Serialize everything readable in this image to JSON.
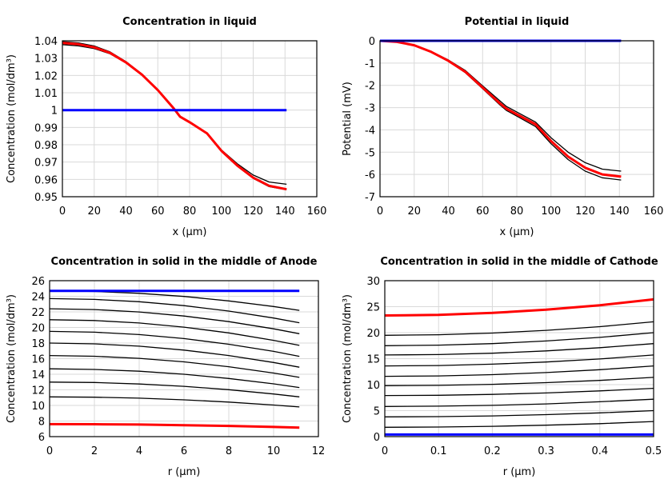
{
  "chart_data": [
    {
      "type": "line",
      "title": "Concentration in liquid",
      "xlabel": "x (µm)",
      "ylabel": "Concentration (mol/dm³)",
      "xlim": [
        0,
        160
      ],
      "ylim": [
        0.95,
        1.04
      ],
      "xticks": [
        "0",
        "20",
        "40",
        "60",
        "80",
        "100",
        "120",
        "140",
        "160"
      ],
      "yticks": [
        "0.95",
        "0.96",
        "0.97",
        "0.98",
        "0.99",
        "1",
        "1.01",
        "1.02",
        "1.03",
        "1.04"
      ],
      "grid": true,
      "x": [
        0,
        10,
        20,
        30,
        40,
        50,
        60,
        70,
        74,
        80,
        91,
        100,
        110,
        120,
        130,
        141
      ],
      "series": [
        {
          "color": "#000000",
          "values": [
            1.0395,
            1.0388,
            1.037,
            1.0336,
            1.028,
            1.0208,
            1.0117,
            1.0012,
            0.9964,
            0.9932,
            0.9867,
            0.977,
            0.969,
            0.9625,
            0.9585,
            0.9572
          ]
        },
        {
          "color": "#000000",
          "values": [
            1.0378,
            1.0371,
            1.0355,
            1.0325,
            1.0272,
            1.0202,
            1.0113,
            1.0008,
            0.996,
            0.9928,
            0.9863,
            0.9762,
            0.9677,
            0.9606,
            0.9558,
            0.954
          ]
        },
        {
          "color": "#ff0000",
          "values": [
            1.0388,
            1.038,
            1.0362,
            1.033,
            1.0275,
            1.0205,
            1.0115,
            1.001,
            0.9962,
            0.993,
            0.9865,
            0.9765,
            0.968,
            0.961,
            0.9563,
            0.9543
          ]
        },
        {
          "color": "#0000ff",
          "values": [
            1,
            1,
            1,
            1,
            1,
            1,
            1,
            1,
            1,
            1,
            1,
            1,
            1,
            1,
            1,
            1
          ]
        }
      ]
    },
    {
      "type": "line",
      "title": "Potential in liquid",
      "xlabel": "x (µm)",
      "ylabel": "Potential (mV)",
      "xlim": [
        0,
        160
      ],
      "ylim": [
        -7,
        0
      ],
      "xticks": [
        "0",
        "20",
        "40",
        "60",
        "80",
        "100",
        "120",
        "140",
        "160"
      ],
      "yticks": [
        "-7",
        "-6",
        "-5",
        "-4",
        "-3",
        "-2",
        "-1",
        "0"
      ],
      "grid": true,
      "x": [
        0,
        10,
        20,
        30,
        40,
        50,
        60,
        70,
        74,
        80,
        91,
        100,
        110,
        120,
        130,
        141
      ],
      "series": [
        {
          "color": "#000000",
          "values": [
            0,
            -0.05,
            -0.19,
            -0.48,
            -0.86,
            -1.34,
            -2.02,
            -2.69,
            -2.95,
            -3.2,
            -3.65,
            -4.35,
            -5.0,
            -5.47,
            -5.76,
            -5.85
          ]
        },
        {
          "color": "#000000",
          "values": [
            0,
            -0.05,
            -0.2,
            -0.51,
            -0.92,
            -1.44,
            -2.15,
            -2.87,
            -3.13,
            -3.38,
            -3.85,
            -4.62,
            -5.33,
            -5.85,
            -6.15,
            -6.25
          ]
        },
        {
          "color": "#ff0000",
          "values": [
            0,
            -0.05,
            -0.2,
            -0.5,
            -0.9,
            -1.4,
            -2.1,
            -2.8,
            -3.05,
            -3.3,
            -3.75,
            -4.5,
            -5.2,
            -5.7,
            -6.0,
            -6.1
          ]
        },
        {
          "color": "#0000ff",
          "values": [
            0,
            0,
            0,
            0,
            0,
            0,
            0,
            0,
            0,
            0,
            0,
            0,
            0,
            0,
            0,
            0
          ]
        }
      ]
    },
    {
      "type": "line",
      "title": "Concentration in solid in the middle of Anode",
      "xlabel": "r (µm)",
      "ylabel": "Concentration (mol/dm³)",
      "xlim": [
        0,
        12
      ],
      "ylim": [
        6,
        26
      ],
      "xticks": [
        "0",
        "2",
        "4",
        "6",
        "8",
        "10",
        "12"
      ],
      "yticks": [
        "6",
        "8",
        "10",
        "12",
        "14",
        "16",
        "18",
        "20",
        "22",
        "24",
        "26"
      ],
      "grid": true,
      "x": [
        0,
        2,
        4,
        6,
        8,
        10,
        11.15
      ],
      "series": [
        {
          "color": "#000000",
          "values": [
            24.7,
            24.62,
            24.38,
            23.98,
            23.41,
            22.69,
            22.2
          ]
        },
        {
          "color": "#000000",
          "values": [
            23.7,
            23.6,
            23.3,
            22.8,
            22.1,
            21.21,
            20.6
          ]
        },
        {
          "color": "#000000",
          "values": [
            22.4,
            22.3,
            21.99,
            21.47,
            20.75,
            19.83,
            19.2
          ]
        },
        {
          "color": "#000000",
          "values": [
            21.0,
            20.89,
            20.57,
            20.04,
            19.3,
            18.35,
            17.7
          ]
        },
        {
          "color": "#000000",
          "values": [
            19.5,
            19.4,
            19.09,
            18.57,
            17.85,
            16.93,
            16.3
          ]
        },
        {
          "color": "#000000",
          "values": [
            18.0,
            17.9,
            17.6,
            17.1,
            16.4,
            15.51,
            14.9
          ]
        },
        {
          "color": "#000000",
          "values": [
            16.4,
            16.31,
            16.04,
            15.59,
            14.96,
            14.15,
            13.6
          ]
        },
        {
          "color": "#000000",
          "values": [
            14.7,
            14.62,
            14.39,
            14.0,
            13.46,
            12.77,
            12.3
          ]
        },
        {
          "color": "#000000",
          "values": [
            13.0,
            12.94,
            12.75,
            12.45,
            12.02,
            11.47,
            11.1
          ]
        },
        {
          "color": "#000000",
          "values": [
            11.1,
            11.06,
            10.93,
            10.72,
            10.43,
            10.05,
            9.8
          ]
        },
        {
          "color": "#ff0000",
          "values": [
            7.6,
            7.59,
            7.55,
            7.47,
            7.37,
            7.24,
            7.15
          ]
        },
        {
          "color": "#0000ff",
          "values": [
            24.7,
            24.7,
            24.7,
            24.7,
            24.7,
            24.7,
            24.7
          ]
        }
      ]
    },
    {
      "type": "line",
      "title": "Concentration in solid in the middle of Cathode",
      "xlabel": "r (µm)",
      "ylabel": "Concentration (mol/dm³)",
      "xlim": [
        0,
        0.5
      ],
      "ylim": [
        0,
        30
      ],
      "xticks": [
        "0",
        "0.1",
        "0.2",
        "0.3",
        "0.4",
        "0.5"
      ],
      "yticks": [
        "0",
        "5",
        "10",
        "15",
        "20",
        "25",
        "30"
      ],
      "grid": true,
      "x": [
        0,
        0.1,
        0.2,
        0.3,
        0.4,
        0.5
      ],
      "series": [
        {
          "color": "#000000",
          "values": [
            19.5,
            19.6,
            19.92,
            20.44,
            21.16,
            22.1
          ]
        },
        {
          "color": "#000000",
          "values": [
            17.5,
            17.6,
            17.9,
            18.4,
            19.1,
            20.0
          ]
        },
        {
          "color": "#000000",
          "values": [
            15.7,
            15.79,
            16.05,
            16.49,
            17.11,
            17.9
          ]
        },
        {
          "color": "#000000",
          "values": [
            13.6,
            13.68,
            13.94,
            14.36,
            14.94,
            15.7
          ]
        },
        {
          "color": "#000000",
          "values": [
            11.6,
            11.68,
            11.92,
            12.32,
            12.88,
            13.6
          ]
        },
        {
          "color": "#000000",
          "values": [
            9.8,
            9.86,
            10.06,
            10.38,
            10.82,
            11.4
          ]
        },
        {
          "color": "#000000",
          "values": [
            7.9,
            7.96,
            8.12,
            8.4,
            8.8,
            9.3
          ]
        },
        {
          "color": "#000000",
          "values": [
            5.8,
            5.86,
            6.02,
            6.3,
            6.7,
            7.2
          ]
        },
        {
          "color": "#000000",
          "values": [
            3.8,
            3.85,
            3.99,
            4.23,
            4.57,
            5.0
          ]
        },
        {
          "color": "#000000",
          "values": [
            1.8,
            1.84,
            1.98,
            2.2,
            2.5,
            2.9
          ]
        },
        {
          "color": "#ff0000",
          "values": [
            23.3,
            23.42,
            23.8,
            24.42,
            25.28,
            26.4
          ]
        },
        {
          "color": "#0000ff",
          "values": [
            0.4,
            0.4,
            0.4,
            0.4,
            0.4,
            0.4
          ]
        }
      ]
    }
  ]
}
